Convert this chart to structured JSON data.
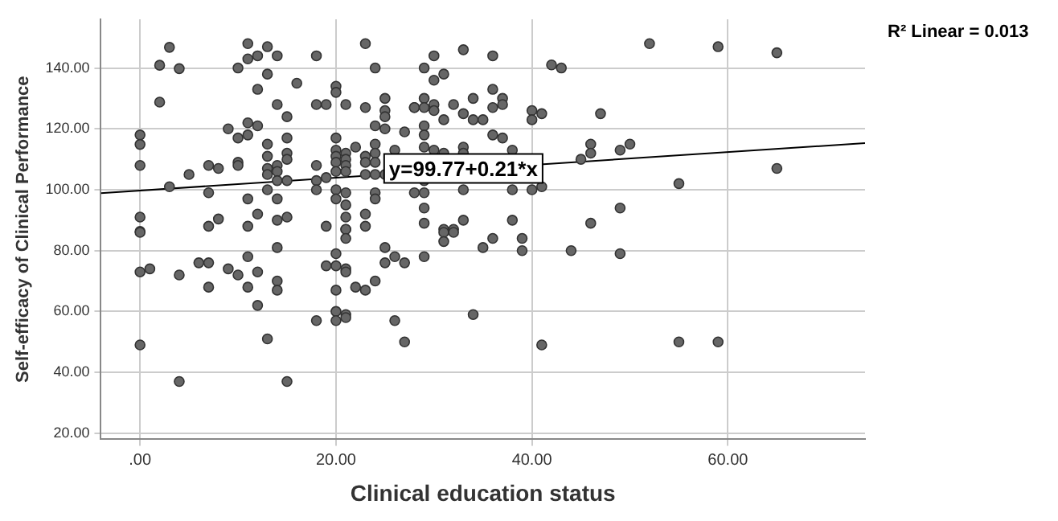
{
  "chart_data": {
    "type": "scatter",
    "xlabel": "Clinical education status",
    "ylabel": "Self-efficacy of Clinical Performance",
    "xlim": [
      -4,
      74
    ],
    "ylim": [
      18,
      156
    ],
    "xticks": [
      {
        "value": 0,
        "label": ".00"
      },
      {
        "value": 20,
        "label": "20.00"
      },
      {
        "value": 40,
        "label": "40.00"
      },
      {
        "value": 60,
        "label": "60.00"
      }
    ],
    "yticks": [
      {
        "value": 20,
        "label": "20.00"
      },
      {
        "value": 40,
        "label": "40.00"
      },
      {
        "value": 60,
        "label": "60.00"
      },
      {
        "value": 80,
        "label": "80.00"
      },
      {
        "value": 100,
        "label": "100.00"
      },
      {
        "value": 120,
        "label": "120.00"
      },
      {
        "value": 140,
        "label": "140.00"
      }
    ],
    "grid": true,
    "legend": false,
    "marker": "circle",
    "series": [
      {
        "color": "#666666",
        "x": [
          3,
          2,
          4,
          2,
          0,
          0,
          0,
          3,
          0,
          0,
          5,
          7,
          8,
          7,
          7,
          8,
          9,
          10,
          11,
          11,
          12,
          10,
          10,
          11,
          11,
          12,
          13,
          14,
          10,
          13,
          12,
          14,
          15,
          16,
          13,
          13,
          13,
          13,
          14,
          14,
          15,
          15,
          15,
          14,
          15,
          13,
          11,
          14,
          12,
          15,
          14,
          11,
          18,
          18,
          19,
          20,
          20,
          21,
          18,
          18,
          18,
          19,
          20,
          20,
          20,
          20,
          20,
          21,
          21,
          21,
          21,
          22,
          23,
          23,
          24,
          24,
          24,
          23,
          24,
          25,
          26,
          20,
          20,
          21,
          21,
          24,
          24,
          19,
          21,
          21,
          23,
          23,
          23,
          24,
          23,
          24,
          25,
          25,
          25,
          25,
          27,
          28,
          30,
          33,
          36,
          29,
          30,
          31,
          29,
          28,
          29,
          30,
          30,
          31,
          32,
          33,
          34,
          34,
          35,
          36,
          36,
          37,
          37,
          29,
          29,
          29,
          30,
          33,
          36,
          37,
          31,
          33,
          38,
          40,
          41,
          40,
          42,
          43,
          47,
          52,
          59,
          65,
          46,
          46,
          49,
          50,
          45,
          65,
          55,
          49,
          29,
          28,
          29,
          33,
          38,
          40,
          41,
          29,
          29,
          33,
          38,
          31,
          32,
          46,
          0,
          0,
          1,
          0,
          4,
          4,
          6,
          7,
          7,
          9,
          10,
          11,
          11,
          12,
          12,
          13,
          14,
          14,
          14,
          15,
          21,
          21,
          19,
          20,
          20,
          21,
          21,
          20,
          22,
          23,
          24,
          25,
          25,
          26,
          27,
          20,
          20,
          21,
          21,
          18,
          26,
          27,
          31,
          32,
          31,
          36,
          39,
          35,
          39,
          44,
          49,
          29,
          34,
          41,
          55,
          59
        ],
        "values": [
          146.8,
          140.9,
          139.8,
          128.8,
          118,
          114.9,
          108,
          101,
          91,
          86.3,
          105,
          108,
          107,
          99,
          88,
          90.4,
          120,
          117,
          122,
          118,
          121,
          109,
          108,
          148,
          143,
          144,
          147,
          144,
          140,
          138,
          133,
          128,
          124,
          135,
          115,
          111,
          107,
          105,
          108,
          106,
          117,
          112,
          110,
          103,
          103,
          100,
          97,
          97,
          92,
          91,
          90,
          88,
          144,
          128,
          128,
          134,
          132,
          128,
          108,
          103,
          100,
          104,
          117,
          113,
          111,
          109,
          106,
          112,
          110,
          108,
          106,
          114,
          111,
          109,
          115,
          112,
          109,
          105,
          105,
          105,
          113,
          100,
          97,
          99,
          95,
          99,
          97,
          88,
          91,
          87,
          92,
          88,
          148,
          140,
          127,
          121,
          130,
          126,
          124,
          120,
          119,
          127,
          144,
          146,
          144,
          140,
          136,
          138,
          130,
          127,
          127,
          128,
          126,
          123,
          128,
          125,
          130,
          123,
          123,
          133,
          127,
          130,
          128,
          121,
          118,
          114,
          113,
          114,
          118,
          117,
          112,
          112,
          113,
          126,
          125,
          123,
          141,
          140,
          125,
          148,
          147,
          145,
          115,
          112,
          113,
          115,
          110,
          107,
          102,
          94,
          103,
          99,
          99,
          100,
          100,
          100,
          101,
          94,
          89,
          90,
          90,
          87,
          87,
          89,
          86,
          73,
          74,
          49,
          72,
          37,
          76,
          76,
          68,
          74,
          72,
          78,
          68,
          73,
          62,
          51,
          81,
          70,
          67,
          37,
          87,
          84,
          75,
          79,
          75,
          74,
          73,
          67,
          68,
          67,
          70,
          81,
          76,
          78,
          76,
          60,
          57,
          59,
          58,
          57,
          57,
          50,
          86,
          86,
          83,
          84,
          84,
          81,
          80,
          80,
          79,
          78,
          59,
          49,
          50,
          50
        ]
      },
      {
        "type": "line",
        "color": "#000000",
        "marker": "none",
        "x": [
          -4,
          74
        ],
        "values": [
          98.9,
          115.3
        ]
      }
    ],
    "annotations": [
      {
        "text": "y=99.77+0.21*x",
        "x": 33,
        "y": 107
      },
      "R² Linear = 0.013"
    ]
  }
}
